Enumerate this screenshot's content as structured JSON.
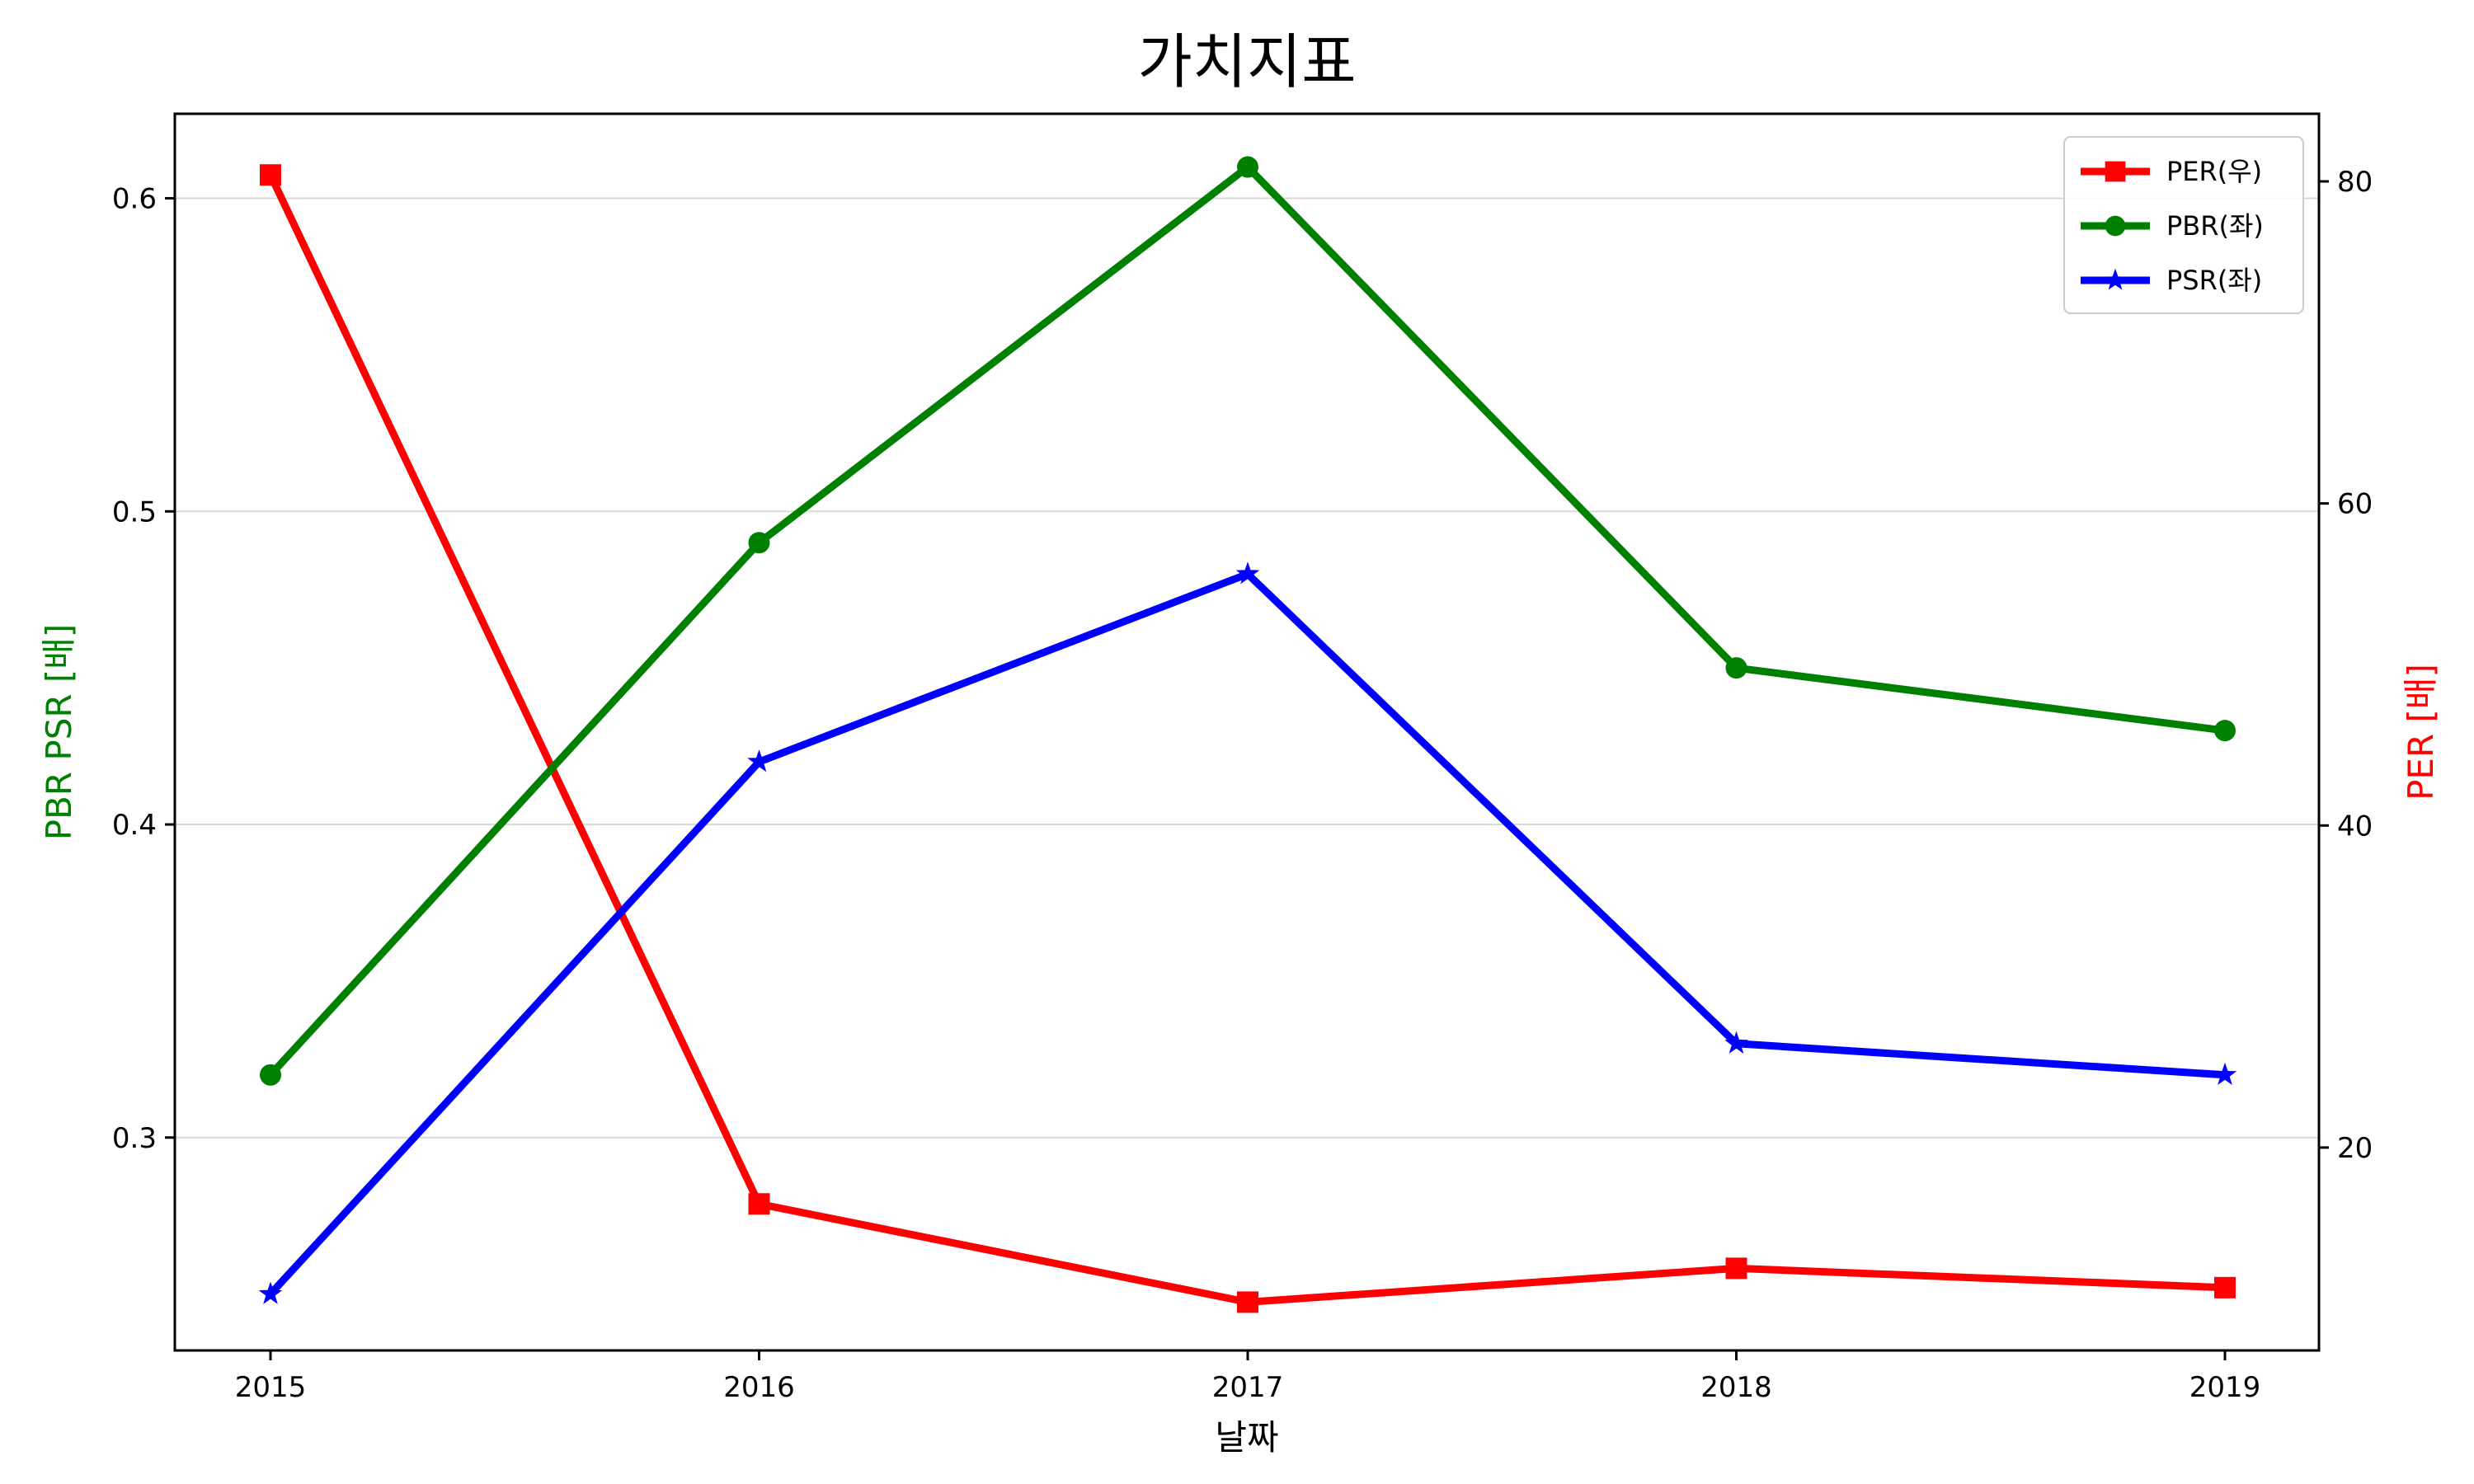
{
  "chart_data": {
    "type": "line",
    "title": "가치지표",
    "xlabel": "날짜",
    "ylabel_left": "PBR PSR [배]",
    "ylabel_right": "PER [배]",
    "ylabel_left_color": "#008000",
    "ylabel_right_color": "#ff0000",
    "categories": [
      "2015",
      "2016",
      "2017",
      "2018",
      "2019"
    ],
    "ylim_left": [
      0.232,
      0.627
    ],
    "ylim_right": [
      7.4,
      84.2
    ],
    "yticks_left": [
      "0.3",
      "0.4",
      "0.5",
      "0.6"
    ],
    "yticks_left_values": [
      0.3,
      0.4,
      0.5,
      0.6
    ],
    "yticks_right": [
      "20",
      "40",
      "60",
      "80"
    ],
    "yticks_right_values": [
      20,
      40,
      60,
      80
    ],
    "grid": "horizontal",
    "legend_position": "top-right",
    "series": [
      {
        "name": "PER(우)",
        "axis": "right",
        "color": "#ff0000",
        "marker": "square",
        "values": [
          80.4,
          16.5,
          10.4,
          12.5,
          11.3
        ]
      },
      {
        "name": "PBR(좌)",
        "axis": "left",
        "color": "#008000",
        "marker": "circle",
        "values": [
          0.32,
          0.49,
          0.61,
          0.45,
          0.43
        ]
      },
      {
        "name": "PSR(좌)",
        "axis": "left",
        "color": "#0000ff",
        "marker": "star",
        "values": [
          0.25,
          0.42,
          0.48,
          0.33,
          0.32
        ]
      }
    ]
  }
}
